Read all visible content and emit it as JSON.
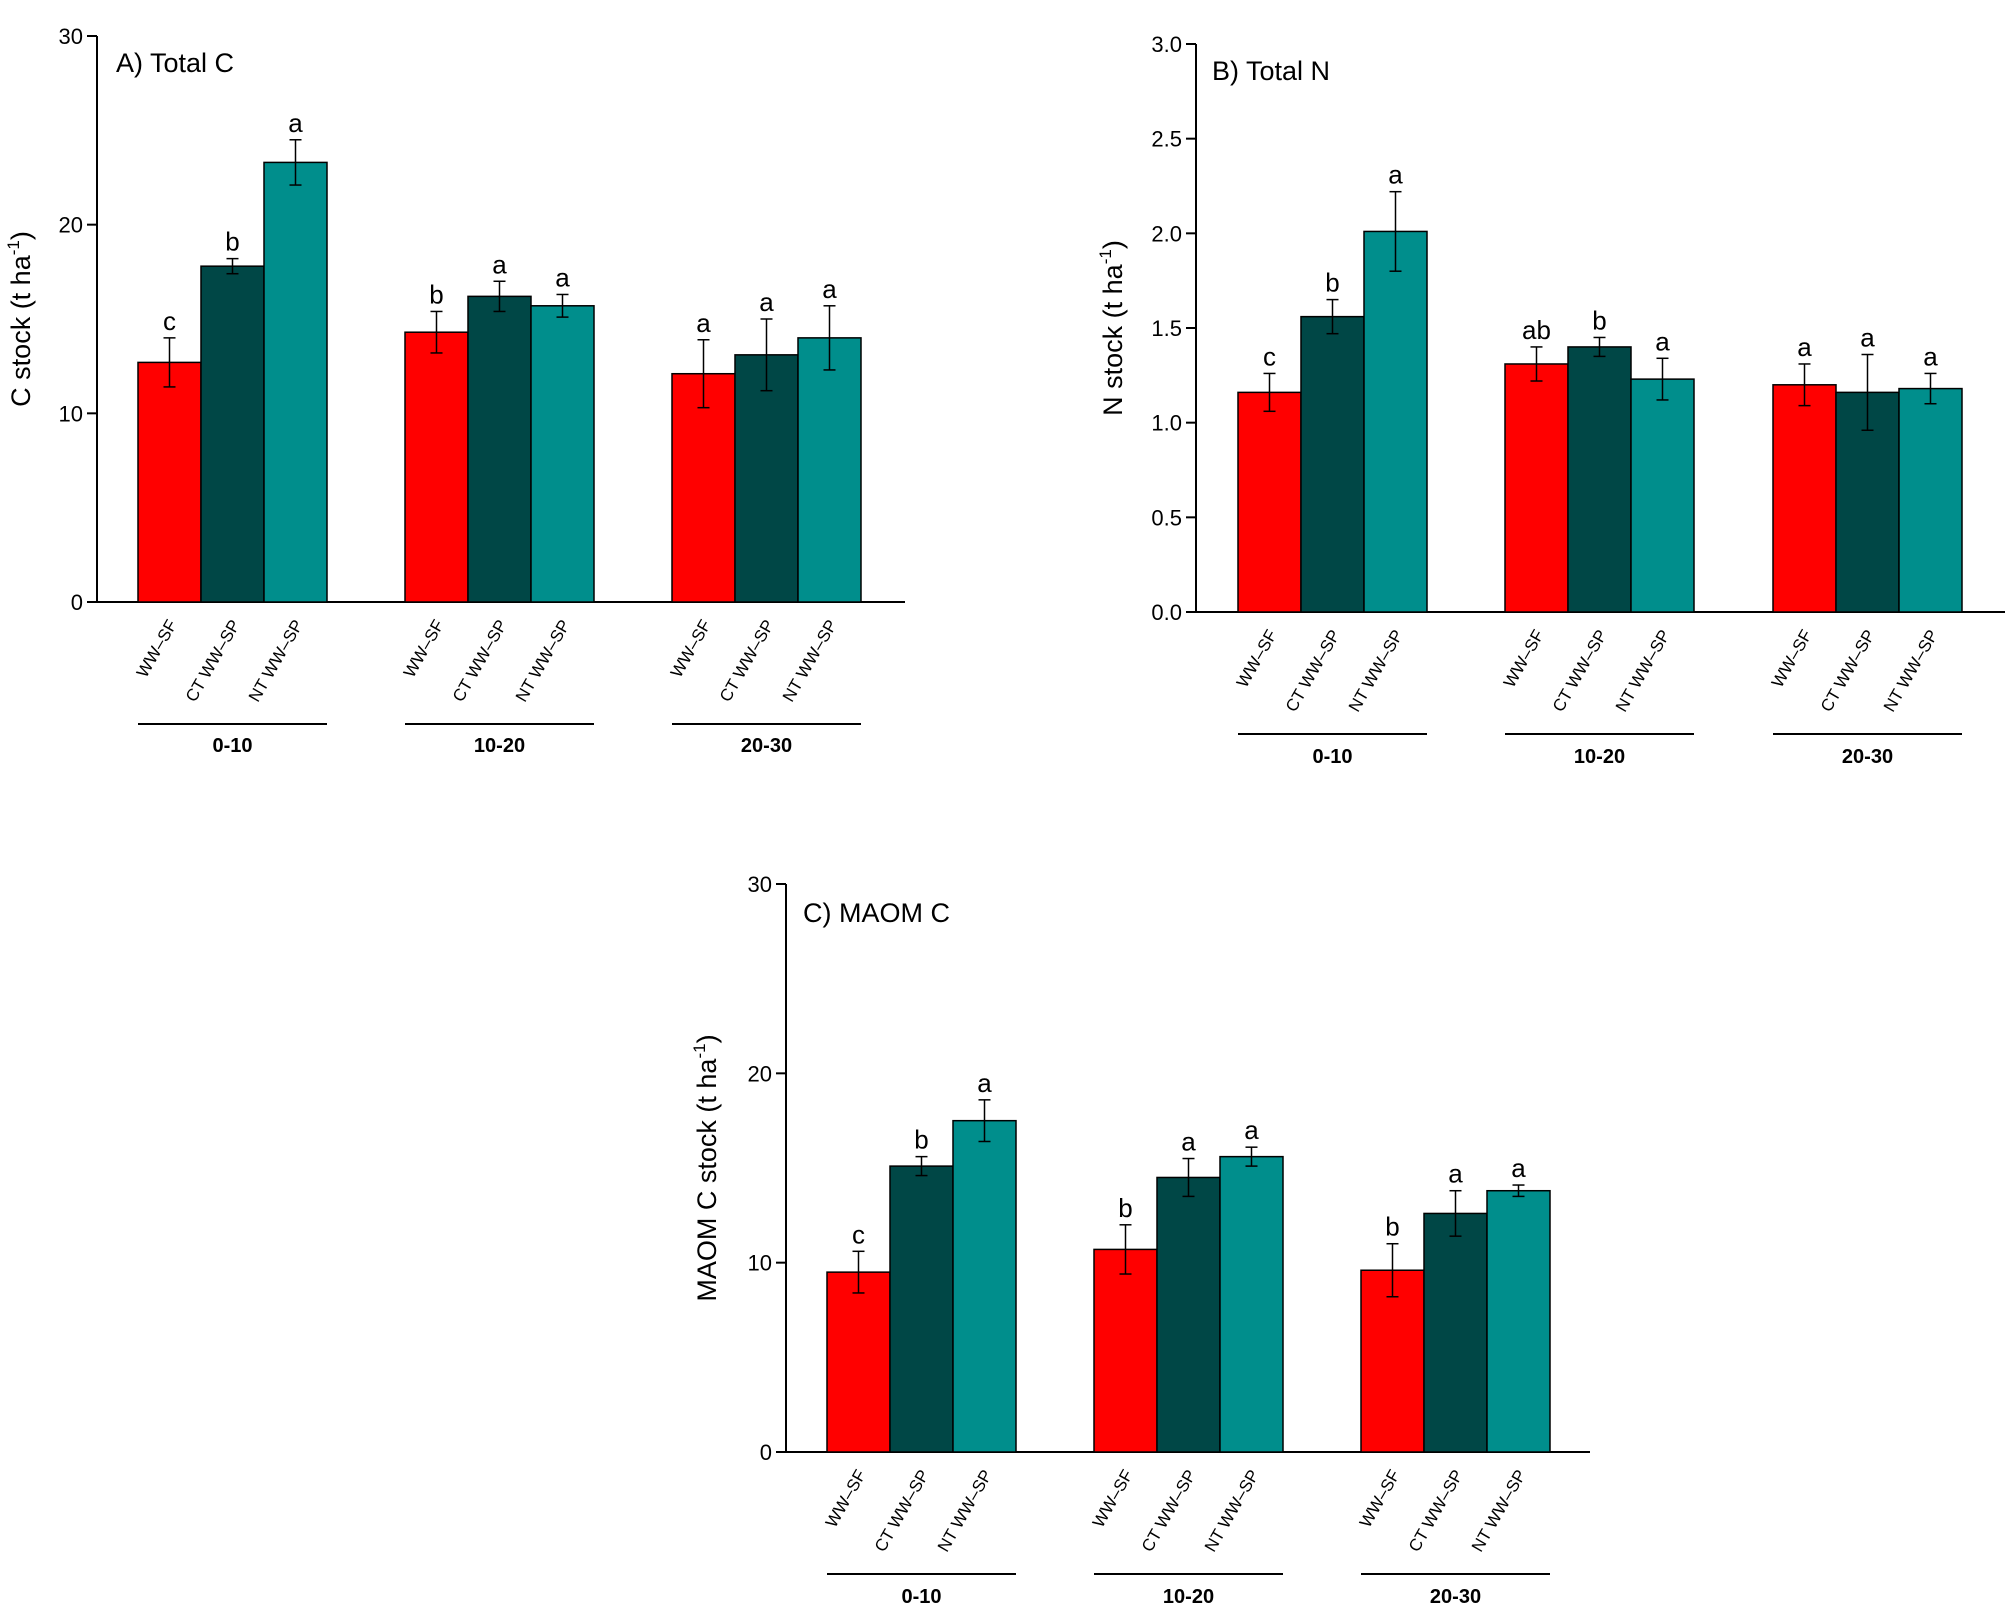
{
  "chart_data": [
    {
      "type": "bar",
      "title": "A)  Total C",
      "ylabel": "C stock (t ha",
      "ylabel_sup": "-1",
      "ylabel_close": ")",
      "ylim": [
        0,
        30
      ],
      "yticks": [
        "0",
        "10",
        "20",
        "30"
      ],
      "grid": false,
      "categories": [
        "WW–SF",
        "CT WW–SP",
        "NT WW–SP"
      ],
      "groups": [
        "0-10",
        "10-20",
        "20-30"
      ],
      "series": [
        {
          "values": [
            12.7,
            14.3,
            12.1
          ],
          "errors": [
            1.3,
            1.1,
            1.8
          ],
          "letters": [
            "c",
            "b",
            "a"
          ]
        },
        {
          "values": [
            17.8,
            16.2,
            13.1
          ],
          "errors": [
            0.4,
            0.8,
            1.9
          ],
          "letters": [
            "b",
            "a",
            "a"
          ]
        },
        {
          "values": [
            23.3,
            15.7,
            14.0
          ],
          "errors": [
            1.2,
            0.6,
            1.7
          ],
          "letters": [
            "a",
            "a",
            "a"
          ]
        }
      ]
    },
    {
      "type": "bar",
      "title": "B) Total N",
      "ylabel": "N stock (t ha",
      "ylabel_sup": "-1",
      "ylabel_close": ")",
      "ylim": [
        0,
        3.0
      ],
      "yticks": [
        "0.0",
        "0.5",
        "1.0",
        "1.5",
        "2.0",
        "2.5",
        "3.0"
      ],
      "grid": false,
      "categories": [
        "WW–SF",
        "CT WW–SP",
        "NT WW–SP"
      ],
      "groups": [
        "0-10",
        "10-20",
        "20-30"
      ],
      "series": [
        {
          "values": [
            1.16,
            1.31,
            1.2
          ],
          "errors": [
            0.1,
            0.09,
            0.11
          ],
          "letters": [
            "c",
            "ab",
            "a"
          ]
        },
        {
          "values": [
            1.56,
            1.4,
            1.16
          ],
          "errors": [
            0.09,
            0.05,
            0.2
          ],
          "letters": [
            "b",
            "b",
            "a"
          ]
        },
        {
          "values": [
            2.01,
            1.23,
            1.18
          ],
          "errors": [
            0.21,
            0.11,
            0.08
          ],
          "letters": [
            "a",
            "a",
            "a"
          ]
        }
      ]
    },
    {
      "type": "bar",
      "title": "C) MAOM C",
      "ylabel": "MAOM C stock (t ha",
      "ylabel_sup": "-1",
      "ylabel_close": ")",
      "ylim": [
        0,
        30
      ],
      "yticks": [
        "0",
        "10",
        "20",
        "30"
      ],
      "grid": false,
      "categories": [
        "WW–SF",
        "CT WW–SP",
        "NT WW–SP"
      ],
      "groups": [
        "0-10",
        "10-20",
        "20-30"
      ],
      "series": [
        {
          "values": [
            9.5,
            10.7,
            9.6
          ],
          "errors": [
            1.1,
            1.3,
            1.4
          ],
          "letters": [
            "c",
            "b",
            "b"
          ]
        },
        {
          "values": [
            15.1,
            14.5,
            12.6
          ],
          "errors": [
            0.5,
            1.0,
            1.2
          ],
          "letters": [
            "b",
            "a",
            "a"
          ]
        },
        {
          "values": [
            17.5,
            15.6,
            13.8
          ],
          "errors": [
            1.1,
            0.5,
            0.3
          ],
          "letters": [
            "a",
            "a",
            "a"
          ]
        }
      ]
    }
  ],
  "colors": {
    "series": [
      "#ff0000",
      "#004746",
      "#008e8c"
    ],
    "axis": "#000000"
  }
}
